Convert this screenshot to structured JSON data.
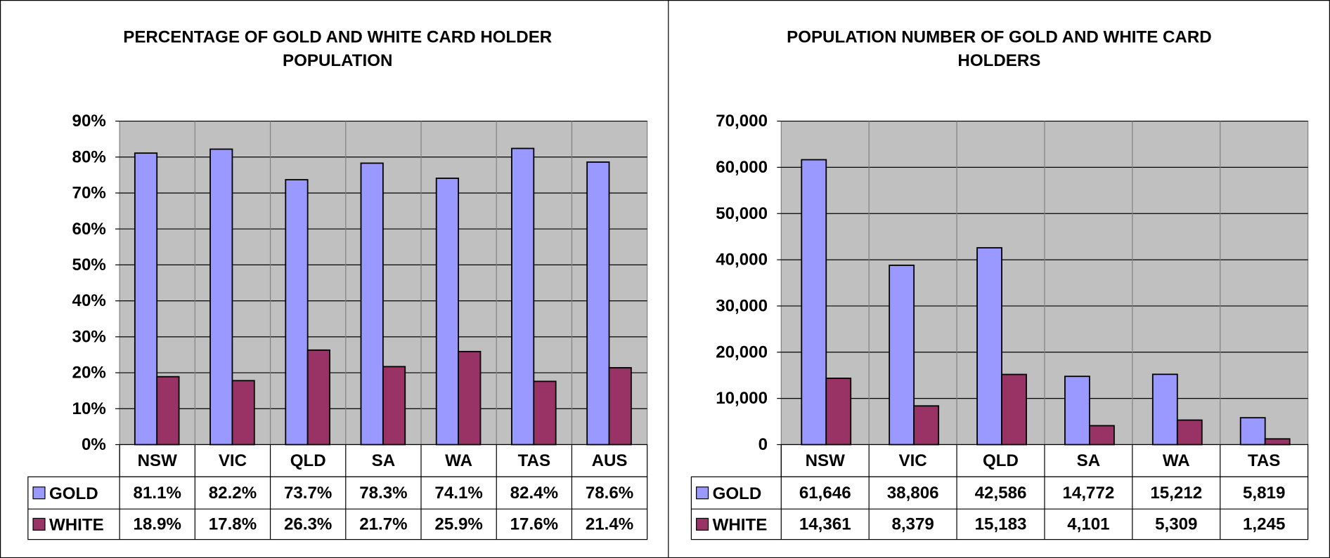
{
  "chart_data": [
    {
      "type": "bar",
      "title": "PERCENTAGE OF GOLD AND WHITE CARD HOLDER POPULATION",
      "categories": [
        "NSW",
        "VIC",
        "QLD",
        "SA",
        "WA",
        "TAS",
        "AUS"
      ],
      "series": [
        {
          "name": "GOLD",
          "color": "#9999ff",
          "values": [
            81.1,
            82.2,
            73.7,
            78.3,
            74.1,
            82.4,
            78.6
          ],
          "value_labels": [
            "81.1%",
            "82.2%",
            "73.7%",
            "78.3%",
            "74.1%",
            "82.4%",
            "78.6%"
          ]
        },
        {
          "name": "WHITE",
          "color": "#993366",
          "values": [
            18.9,
            17.8,
            26.3,
            21.7,
            25.9,
            17.6,
            21.4
          ],
          "value_labels": [
            "18.9%",
            "17.8%",
            "26.3%",
            "21.7%",
            "25.9%",
            "17.6%",
            "21.4%"
          ]
        }
      ],
      "ylim": [
        0,
        90
      ],
      "yticks": [
        {
          "value": 0,
          "label": "0%"
        },
        {
          "value": 10,
          "label": "10%"
        },
        {
          "value": 20,
          "label": "20%"
        },
        {
          "value": 30,
          "label": "30%"
        },
        {
          "value": 40,
          "label": "40%"
        },
        {
          "value": 50,
          "label": "50%"
        },
        {
          "value": 60,
          "label": "60%"
        },
        {
          "value": 70,
          "label": "70%"
        },
        {
          "value": 80,
          "label": "80%"
        },
        {
          "value": 90,
          "label": "90%"
        }
      ],
      "grid": true
    },
    {
      "type": "bar",
      "title": "POPULATION NUMBER OF GOLD AND WHITE CARD HOLDERS",
      "categories": [
        "NSW",
        "VIC",
        "QLD",
        "SA",
        "WA",
        "TAS"
      ],
      "series": [
        {
          "name": "GOLD",
          "color": "#9999ff",
          "values": [
            61646,
            38806,
            42586,
            14772,
            15212,
            5819
          ],
          "value_labels": [
            "61,646",
            "38,806",
            "42,586",
            "14,772",
            "15,212",
            "5,819"
          ]
        },
        {
          "name": "WHITE",
          "color": "#993366",
          "values": [
            14361,
            8379,
            15183,
            4101,
            5309,
            1245
          ],
          "value_labels": [
            "14,361",
            "8,379",
            "15,183",
            "4,101",
            "5,309",
            "1,245"
          ]
        }
      ],
      "ylim": [
        0,
        70000
      ],
      "yticks": [
        0,
        {
          "value": 10000,
          "label": "10,000"
        },
        {
          "value": 20000,
          "label": "20,000"
        },
        {
          "value": 30000,
          "label": "30,000"
        },
        {
          "value": 40000,
          "label": "40,000"
        },
        {
          "value": 50000,
          "label": "50,000"
        },
        {
          "value": 60000,
          "label": "60,000"
        },
        {
          "value": 70000,
          "label": "70,000"
        }
      ],
      "grid": true
    }
  ]
}
